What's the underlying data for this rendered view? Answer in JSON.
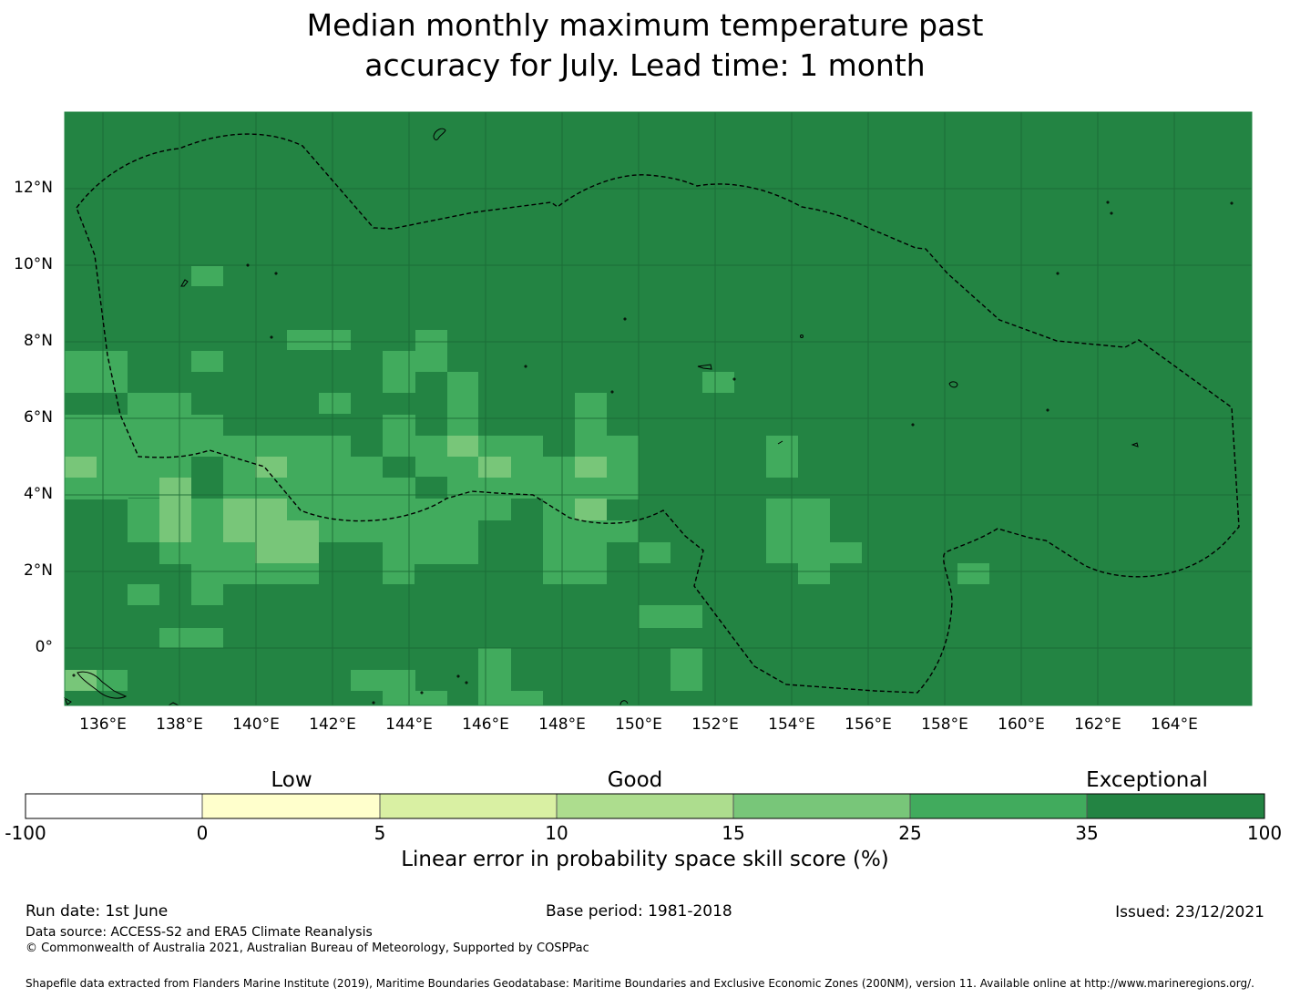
{
  "title_line1": "Median monthly maximum temperature past",
  "title_line2": "accuracy for July. Lead time: 1 month",
  "map": {
    "lat_range": [
      -1.5,
      14.0
    ],
    "lon_range": [
      135.0,
      166.0
    ],
    "lat_labels": [
      "12°N",
      "10°N",
      "8°N",
      "6°N",
      "4°N",
      "2°N",
      "0°"
    ],
    "lon_labels": [
      "136°E",
      "138°E",
      "140°E",
      "142°E",
      "144°E",
      "146°E",
      "148°E",
      "150°E",
      "152°E",
      "154°E",
      "156°E",
      "158°E",
      "160°E",
      "162°E",
      "164°E"
    ],
    "background_color": "#238443",
    "grid_color": "#1a6a35"
  },
  "legend": {
    "categories": [
      "Low",
      "Good",
      "Exceptional"
    ],
    "ticks": [
      "-100",
      "0",
      "5",
      "10",
      "15",
      "25",
      "35",
      "100"
    ],
    "colors": [
      "#ffffff",
      "#ffffcc",
      "#d9f0a3",
      "#addd8e",
      "#78c679",
      "#41ab5d",
      "#238443"
    ],
    "title": "Linear error in probability space skill score (%)"
  },
  "footer": {
    "run_date": "Run date: 1st June",
    "base_period": "Base period: 1981-2018",
    "issued": "Issued: 23/12/2021",
    "data_source": "Data source: ACCESS-S2 and ERA5 Climate Reanalysis",
    "copyright": "© Commonwealth of Australia 2021, Australian Bureau of Meteorology, Supported by COSPPac",
    "shapefile": "Shapefile data extracted from Flanders Marine Institute (2019), Maritime Boundaries Geodatabase: Maritime Boundaries and Exclusive Economic Zones (200NM), version 11. Available online at http://www.marineregions.org/."
  }
}
